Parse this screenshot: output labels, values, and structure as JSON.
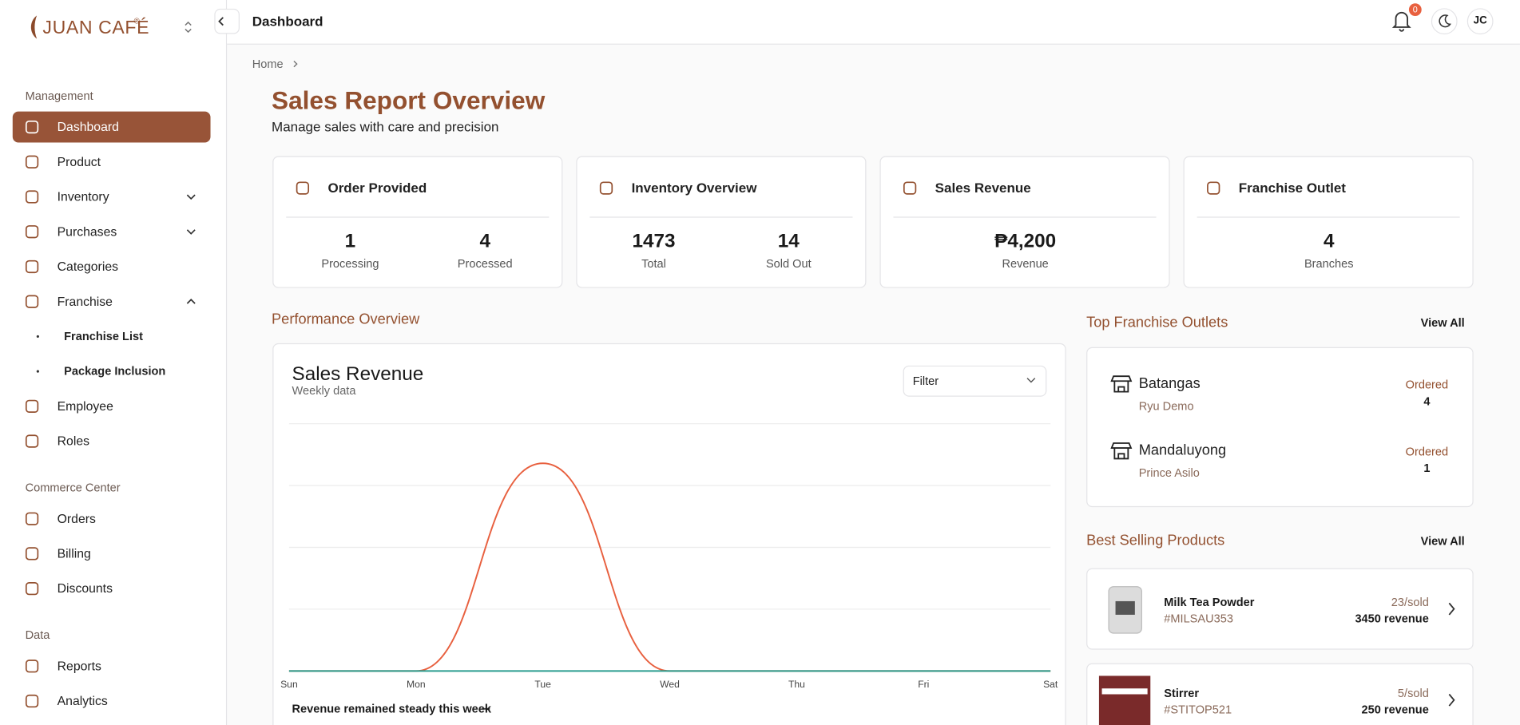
{
  "sidebar": {
    "brand": "JUAN CAFÉ",
    "brand_mark": "®",
    "sections": [
      {
        "title": "Management",
        "items": [
          {
            "label": "Dashboard",
            "active": true
          },
          {
            "label": "Product"
          },
          {
            "label": "Inventory",
            "expanded": false
          },
          {
            "label": "Purchases",
            "expanded": false
          },
          {
            "label": "Categories"
          },
          {
            "label": "Franchise",
            "expanded": true,
            "children": [
              "Franchise List",
              "Package Inclusion"
            ]
          },
          {
            "label": "Employee"
          },
          {
            "label": "Roles"
          }
        ]
      },
      {
        "title": "Commerce Center",
        "items": [
          {
            "label": "Orders"
          },
          {
            "label": "Billing"
          },
          {
            "label": "Discounts"
          }
        ]
      },
      {
        "title": "Data",
        "items": [
          {
            "label": "Reports"
          },
          {
            "label": "Analytics"
          }
        ]
      }
    ]
  },
  "header": {
    "title": "Dashboard",
    "notifications": 0,
    "avatar": "JC"
  },
  "breadcrumb": [
    "Home"
  ],
  "page": {
    "title": "Sales Report Overview",
    "subtitle": "Manage sales with care and precision"
  },
  "cards": [
    {
      "title": "Order Provided",
      "stats": [
        {
          "value": 1,
          "label": "Processing"
        },
        {
          "value": 4,
          "label": "Processed"
        }
      ]
    },
    {
      "title": "Inventory Overview",
      "stats": [
        {
          "value": 1473,
          "label": "Total"
        },
        {
          "value": 14,
          "label": "Sold Out"
        }
      ]
    },
    {
      "title": "Sales Revenue",
      "stats": [
        {
          "value": "₱4,200",
          "label": "Revenue"
        }
      ]
    },
    {
      "title": "Franchise Outlet",
      "stats": [
        {
          "value": 4,
          "label": "Branches"
        }
      ]
    }
  ],
  "performance": {
    "title": "Performance Overview",
    "footer": "Revenue remained steady this week"
  },
  "chart_data": {
    "type": "line",
    "title": "Sales Revenue",
    "subtitle": "Weekly data",
    "filter": "Filter",
    "categories": [
      "Sun",
      "Mon",
      "Tue",
      "Wed",
      "Thu",
      "Fri",
      "Sat"
    ],
    "series": [
      {
        "color": "#e8603f",
        "values": [
          0,
          0,
          4200,
          0,
          0,
          0,
          0
        ]
      },
      {
        "color": "#2a9d8f",
        "values": [
          0,
          0,
          0,
          0,
          0,
          0,
          0
        ]
      }
    ],
    "ylim": [
      0,
      5000
    ],
    "grid": true
  },
  "outlets": {
    "title": "Top Franchise Outlets",
    "action": "View All",
    "items": [
      {
        "name": "Batangas",
        "owner": "Ryu Demo",
        "status": "Ordered",
        "count": 4
      },
      {
        "name": "Mandaluyong",
        "owner": "Prince Asilo",
        "status": "Ordered",
        "count": 1
      }
    ]
  },
  "products": {
    "title": "Best Selling Products",
    "action": "View All",
    "items": [
      {
        "name": "Milk Tea Powder",
        "code": "#MILSAU353",
        "sold": "23/sold",
        "revenue": "3450 revenue"
      },
      {
        "name": "Stirrer",
        "code": "#STITOP521",
        "sold": "5/sold",
        "revenue": "250 revenue"
      }
    ]
  }
}
